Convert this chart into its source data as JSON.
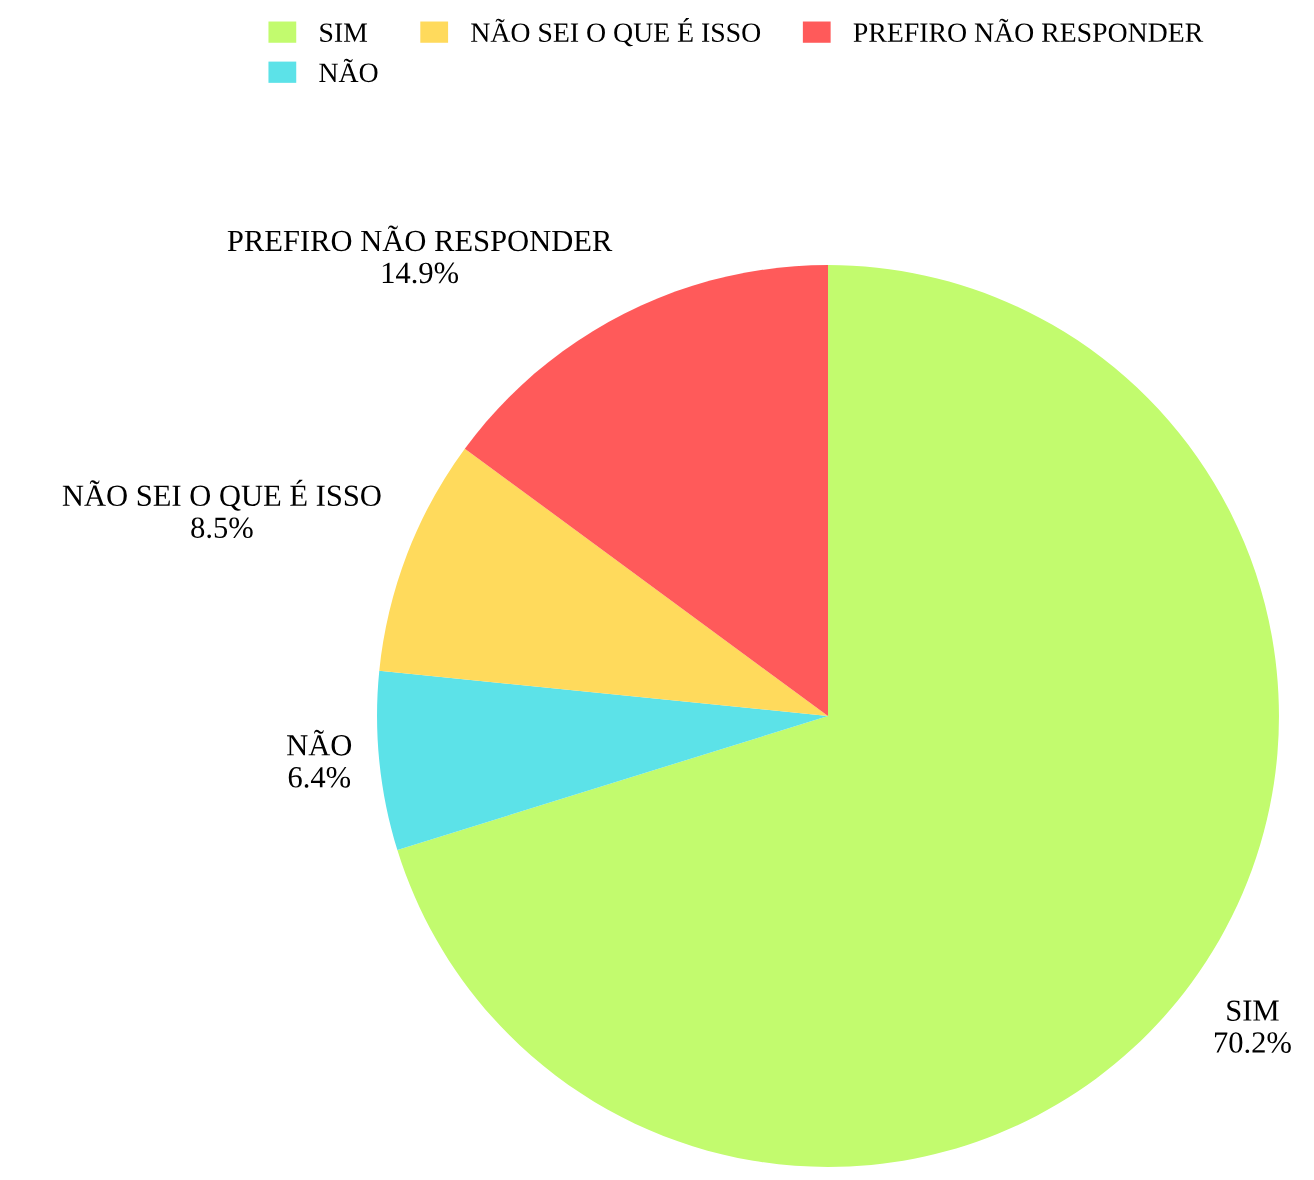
{
  "chart_data": {
    "type": "pie",
    "categories": [
      "SIM",
      "NÃO",
      "NÃO SEI O QUE É ISSO",
      "PREFIRO NÃO RESPONDER"
    ],
    "values": [
      70.2,
      6.4,
      8.5,
      14.9
    ],
    "colors": [
      "#c2fb6e",
      "#5ce2e8",
      "#ffda5c",
      "#ff5a5a"
    ],
    "value_labels": [
      "70.2%",
      "6.4%",
      "8.5%",
      "14.9%"
    ],
    "legend": "top"
  }
}
